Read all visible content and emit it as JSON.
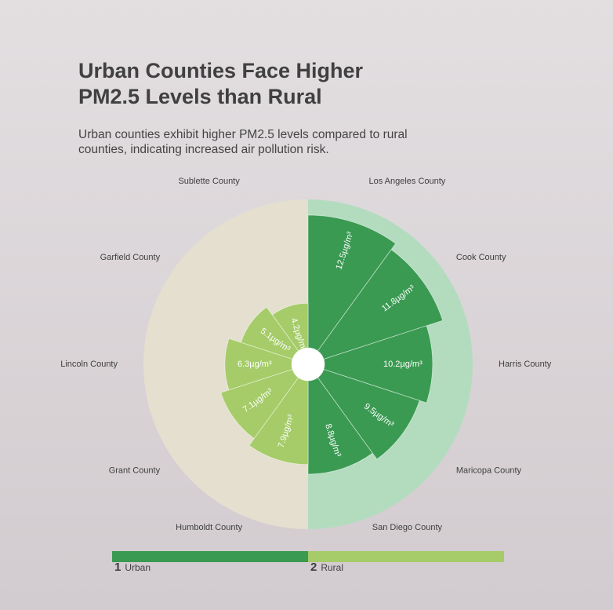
{
  "title": "Urban Counties Face Higher PM2.5 Levels than Rural",
  "subtitle": "Urban counties exhibit higher PM2.5 levels compared to rural counties, indicating increased air pollution risk.",
  "colors": {
    "urban_bar": "#3a9a52",
    "urban_bg": "#b3dcbf",
    "rural_bar": "#a5cc68",
    "rural_bg": "#e4dfce",
    "legend_urban": "#3a9a52",
    "legend_rural": "#a5cc68"
  },
  "legend": [
    {
      "num": "1",
      "label": "Urban"
    },
    {
      "num": "2",
      "label": "Rural"
    }
  ],
  "chart_data": {
    "type": "radial-bar",
    "unit": "µg/m³",
    "max_value": 12.5,
    "series": [
      {
        "name": "Urban",
        "side": "right",
        "categories": [
          "Los Angeles County",
          "Cook County",
          "Harris County",
          "Maricopa County",
          "San Diego County"
        ],
        "values": [
          12.5,
          11.8,
          10.2,
          9.5,
          8.8
        ],
        "labels": [
          "12.5µg/m³",
          "11.8µg/m³",
          "10.2µg/m³",
          "9.5µg/m³",
          "8.8µg/m³"
        ]
      },
      {
        "name": "Rural",
        "side": "left",
        "categories": [
          "Sublette County",
          "Garfield County",
          "Lincoln County",
          "Grant County",
          "Humboldt County"
        ],
        "values": [
          4.2,
          5.1,
          6.3,
          7.1,
          7.9
        ],
        "labels": [
          "4.2µg/m³",
          "5.1µg/m³",
          "6.3µg/m³",
          "7.1µg/m³",
          "7.9µg/m³"
        ]
      }
    ]
  }
}
